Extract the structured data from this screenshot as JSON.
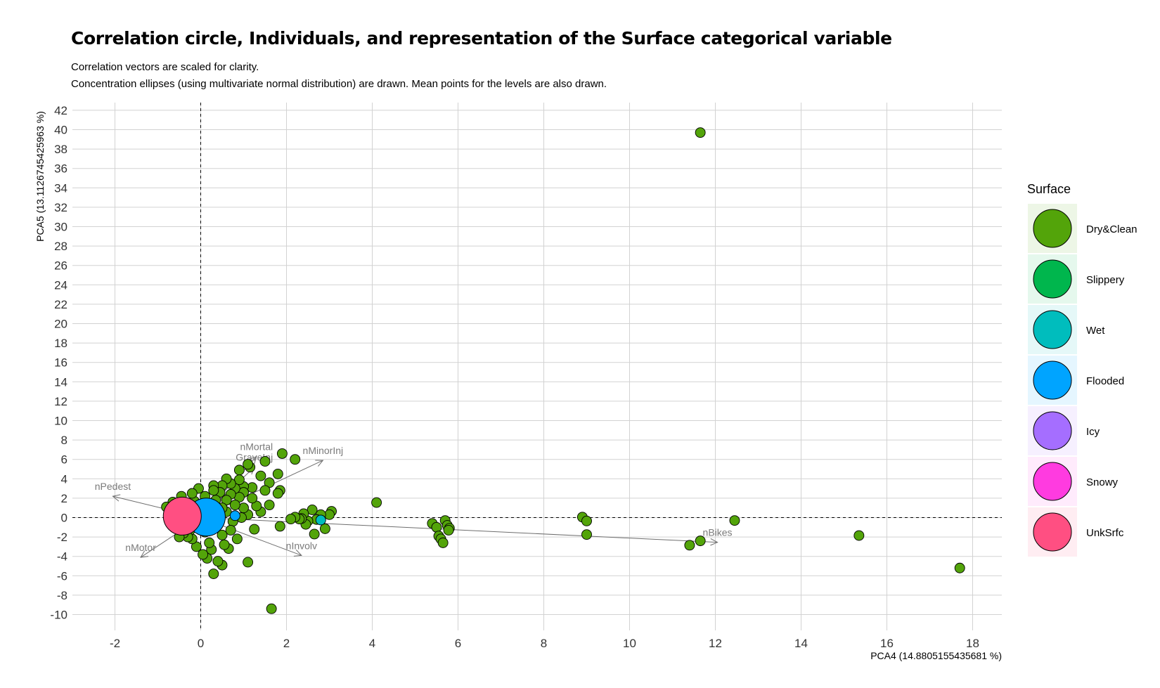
{
  "chart_data": {
    "type": "scatter",
    "title": "Correlation circle, Individuals, and representation of the Surface categorical variable",
    "subtitle_lines": [
      "Correlation vectors are scaled for clarity.",
      "Concentration ellipses (using multivariate normal distribution) are drawn. Mean points for the levels are also drawn."
    ],
    "xlabel": "PCA4 (14.8805155435681 %)",
    "ylabel": "PCA5 (13.1126745425963 %)",
    "xlim": [
      -2.5,
      18.5
    ],
    "ylim": [
      -11,
      42.5
    ],
    "xticks": [
      -2,
      0,
      2,
      4,
      6,
      8,
      10,
      12,
      14,
      16,
      18
    ],
    "yticks": [
      -10,
      -8,
      -6,
      -4,
      -2,
      0,
      2,
      4,
      6,
      8,
      10,
      12,
      14,
      16,
      18,
      20,
      22,
      24,
      26,
      28,
      30,
      32,
      34,
      36,
      38,
      40,
      42
    ],
    "grid": true,
    "reference_lines": {
      "x": 0,
      "y": 0,
      "style": "dashed"
    },
    "legend": {
      "title": "Surface",
      "placement": "right",
      "entries": [
        {
          "label": "Dry&Clean",
          "color": "#53A40A"
        },
        {
          "label": "Slippery",
          "color": "#00B64D"
        },
        {
          "label": "Wet",
          "color": "#00BDBD"
        },
        {
          "label": "Flooded",
          "color": "#00A4FF"
        },
        {
          "label": "Icy",
          "color": "#A56EFF"
        },
        {
          "label": "Snowy",
          "color": "#FF3BE0"
        },
        {
          "label": "UnkSrfc",
          "color": "#FF4F82"
        }
      ]
    },
    "vectors": [
      {
        "name": "nPedest",
        "x": -2.05,
        "y": 2.2
      },
      {
        "name": "nMortal",
        "x": 1.3,
        "y": 6.3
      },
      {
        "name": "nMinorInj",
        "x": 2.85,
        "y": 5.9
      },
      {
        "name": "GraveInj",
        "x": 1.25,
        "y": 5.2
      },
      {
        "name": "nMotor",
        "x": -1.4,
        "y": -4.1
      },
      {
        "name": "nInvolv",
        "x": 2.35,
        "y": -3.9
      },
      {
        "name": "nBikes",
        "x": 12.05,
        "y": -2.55
      }
    ],
    "series": [
      {
        "name": "Dry&Clean",
        "color": "#53A40A",
        "points": [
          [
            11.65,
            39.7
          ],
          [
            1.65,
            -9.4
          ],
          [
            17.7,
            -5.2
          ],
          [
            15.35,
            -1.85
          ],
          [
            12.45,
            -0.3
          ],
          [
            11.65,
            -2.4
          ],
          [
            11.4,
            -2.85
          ],
          [
            8.9,
            0.05
          ],
          [
            9.0,
            -0.35
          ],
          [
            9.0,
            -1.75
          ],
          [
            5.4,
            -0.6
          ],
          [
            5.5,
            -1.0
          ],
          [
            5.55,
            -1.9
          ],
          [
            5.6,
            -2.2
          ],
          [
            5.65,
            -2.6
          ],
          [
            5.7,
            -0.3
          ],
          [
            5.75,
            -0.8
          ],
          [
            5.8,
            -1.1
          ],
          [
            5.78,
            -1.3
          ],
          [
            4.1,
            1.55
          ],
          [
            3.05,
            0.65
          ],
          [
            3.0,
            0.3
          ],
          [
            2.9,
            -1.15
          ],
          [
            2.8,
            0.3
          ],
          [
            2.7,
            -0.2
          ],
          [
            2.65,
            -1.7
          ],
          [
            2.6,
            0.8
          ],
          [
            2.5,
            -0.35
          ],
          [
            2.45,
            -0.7
          ],
          [
            2.4,
            0.4
          ],
          [
            2.35,
            -0.1
          ],
          [
            2.3,
            -0.15
          ],
          [
            2.2,
            0.05
          ],
          [
            2.1,
            -0.15
          ],
          [
            2.2,
            6.0
          ],
          [
            1.9,
            6.6
          ],
          [
            1.8,
            4.5
          ],
          [
            1.85,
            2.8
          ],
          [
            1.8,
            2.5
          ],
          [
            1.85,
            -0.9
          ],
          [
            1.6,
            3.6
          ],
          [
            1.6,
            1.3
          ],
          [
            1.5,
            5.8
          ],
          [
            1.5,
            2.8
          ],
          [
            1.4,
            4.3
          ],
          [
            1.4,
            0.6
          ],
          [
            1.3,
            1.2
          ],
          [
            1.25,
            -1.2
          ],
          [
            1.2,
            3.1
          ],
          [
            1.2,
            2.0
          ],
          [
            1.15,
            5.2
          ],
          [
            1.1,
            5.5
          ],
          [
            1.1,
            0.3
          ],
          [
            1.1,
            -4.6
          ],
          [
            1.0,
            3.2
          ],
          [
            1.0,
            2.6
          ],
          [
            1.0,
            1.0
          ],
          [
            0.95,
            0.0
          ],
          [
            0.9,
            4.9
          ],
          [
            0.9,
            3.9
          ],
          [
            0.9,
            2.1
          ],
          [
            0.85,
            -2.2
          ],
          [
            0.8,
            3.0
          ],
          [
            0.8,
            1.3
          ],
          [
            0.75,
            -0.4
          ],
          [
            0.7,
            3.5
          ],
          [
            0.7,
            2.4
          ],
          [
            0.7,
            -1.3
          ],
          [
            0.65,
            -3.2
          ],
          [
            0.6,
            4.0
          ],
          [
            0.6,
            1.8
          ],
          [
            0.6,
            0.6
          ],
          [
            0.55,
            -2.8
          ],
          [
            0.5,
            3.3
          ],
          [
            0.5,
            1.0
          ],
          [
            0.5,
            -1.8
          ],
          [
            0.5,
            -4.9
          ],
          [
            0.45,
            2.6
          ],
          [
            0.4,
            -0.8
          ],
          [
            0.4,
            -4.5
          ],
          [
            0.35,
            1.8
          ],
          [
            0.35,
            0.5
          ],
          [
            0.3,
            3.3
          ],
          [
            0.3,
            2.8
          ],
          [
            0.3,
            -5.8
          ],
          [
            0.25,
            -3.3
          ],
          [
            0.2,
            1.2
          ],
          [
            0.2,
            -0.4
          ],
          [
            0.2,
            -2.6
          ],
          [
            0.15,
            -4.2
          ],
          [
            0.1,
            2.2
          ],
          [
            0.1,
            -1.5
          ],
          [
            0.05,
            -3.8
          ],
          [
            -0.05,
            3.0
          ],
          [
            -0.05,
            0.8
          ],
          [
            -0.1,
            -0.9
          ],
          [
            -0.1,
            -3.0
          ],
          [
            -0.15,
            1.7
          ],
          [
            -0.2,
            -2.2
          ],
          [
            -0.2,
            2.5
          ],
          [
            -0.25,
            -1.3
          ],
          [
            -0.3,
            0.4
          ],
          [
            -0.3,
            -2.0
          ],
          [
            -0.35,
            1.4
          ],
          [
            -0.4,
            -1.6
          ],
          [
            -0.45,
            2.2
          ],
          [
            -0.5,
            -2.0
          ],
          [
            -0.55,
            0.9
          ],
          [
            -0.6,
            -1.0
          ],
          [
            -0.65,
            1.6
          ],
          [
            -0.7,
            -0.5
          ],
          [
            -0.75,
            0.3
          ],
          [
            -0.8,
            1.1
          ]
        ]
      },
      {
        "name": "Wet",
        "color": "#00BDBD",
        "points": [
          [
            2.8,
            -0.25
          ],
          [
            0.15,
            -0.6
          ],
          [
            -0.1,
            0.4
          ]
        ]
      },
      {
        "name": "Flooded",
        "color": "#00A4FF",
        "points": [
          [
            0.8,
            0.2
          ]
        ]
      }
    ],
    "mean_points": [
      {
        "level": "Flooded",
        "x": 0.13,
        "y": 0.05,
        "color": "#00A4FF"
      },
      {
        "level": "UnkSrfc",
        "x": -0.43,
        "y": 0.15,
        "color": "#FF4F82"
      }
    ]
  }
}
